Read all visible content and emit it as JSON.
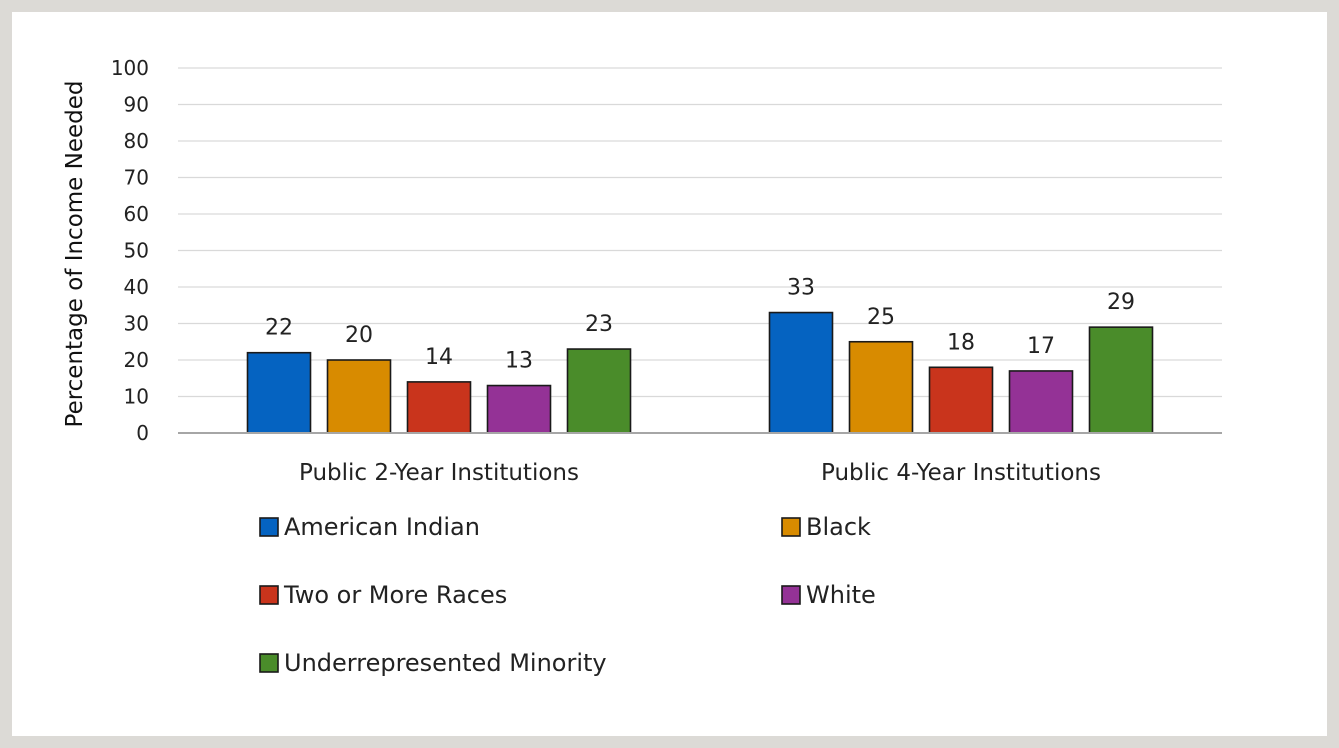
{
  "chart_data": {
    "type": "bar",
    "title": "",
    "xlabel": "",
    "ylabel": "Percentage of Income Needed",
    "ylim": [
      0,
      100
    ],
    "yticks": [
      0,
      10,
      20,
      30,
      40,
      50,
      60,
      70,
      80,
      90,
      100
    ],
    "grid": true,
    "legend_position": "bottom",
    "categories": [
      "Public 2-Year Institutions",
      "Public 4-Year Institutions"
    ],
    "series": [
      {
        "name": "American Indian",
        "color": "#0563c1",
        "values": [
          22,
          33
        ]
      },
      {
        "name": "Black",
        "color": "#d88b00",
        "values": [
          20,
          25
        ]
      },
      {
        "name": "Two or More Races",
        "color": "#c9341c",
        "values": [
          14,
          18
        ]
      },
      {
        "name": "White",
        "color": "#943296",
        "values": [
          13,
          17
        ]
      },
      {
        "name": "Underrepresented Minority",
        "color": "#4a8c2a",
        "values": [
          23,
          29
        ]
      }
    ]
  }
}
